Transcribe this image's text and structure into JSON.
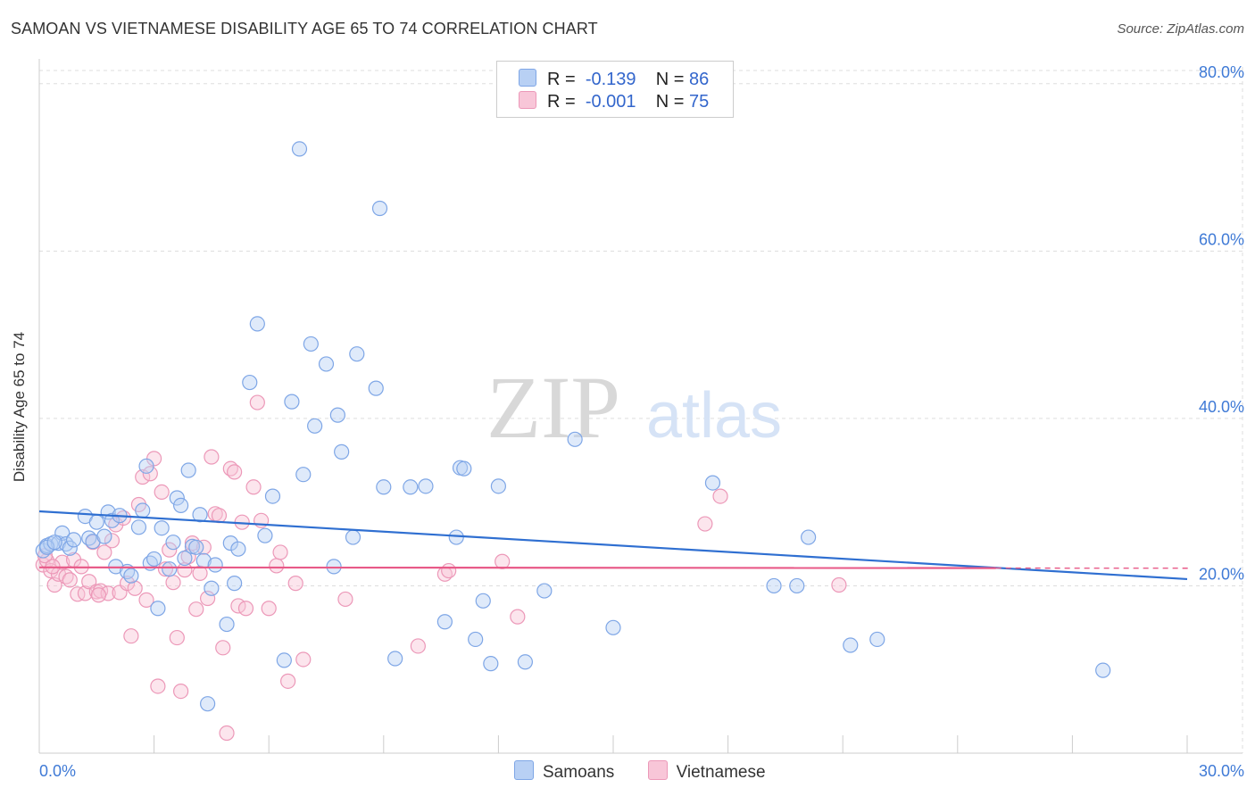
{
  "title": "SAMOAN VS VIETNAMESE DISABILITY AGE 65 TO 74 CORRELATION CHART",
  "source": "Source: ZipAtlas.com",
  "watermark": {
    "zip": "ZIP",
    "atlas": "atlas"
  },
  "legend": {
    "r_label": "R =",
    "n_label": "N =",
    "rows": [
      {
        "name": "Samoans",
        "r": "-0.139",
        "n": "86",
        "color": "#6b9be0"
      },
      {
        "name": "Vietnamese",
        "r": "-0.001",
        "n": "75",
        "color": "#ec8fb0"
      }
    ]
  },
  "colors": {
    "blue_fill": "#b8d0f4",
    "blue_stroke": "#7ea6e6",
    "blue_line": "#2f6fd1",
    "pink_fill": "#f8c6d8",
    "pink_stroke": "#ec98b8",
    "pink_line": "#e85a88",
    "axis_text": "#3f7ad6",
    "grid": "#dddddd"
  },
  "chart_data": {
    "type": "scatter",
    "title": "SAMOAN VS VIETNAMESE DISABILITY AGE 65 TO 74 CORRELATION CHART",
    "xlabel": "",
    "ylabel": "Disability Age 65 to 74",
    "xlim": [
      0,
      30
    ],
    "ylim": [
      0,
      82
    ],
    "x_tick_labels": [
      "0.0%",
      "30.0%"
    ],
    "y_ticks": [
      20,
      40,
      60,
      80
    ],
    "y_tick_labels": [
      "20.0%",
      "40.0%",
      "60.0%",
      "80.0%"
    ],
    "series": [
      {
        "name": "Samoans",
        "r": -0.139,
        "n": 86,
        "trend": {
          "x": [
            0,
            30
          ],
          "y": [
            28.9,
            20.8
          ]
        },
        "points": [
          [
            0.1,
            24.2
          ],
          [
            0.2,
            24.8
          ],
          [
            0.3,
            25.0
          ],
          [
            0.5,
            25.1
          ],
          [
            0.6,
            26.3
          ],
          [
            0.7,
            25.0
          ],
          [
            0.8,
            24.5
          ],
          [
            0.9,
            25.5
          ],
          [
            1.2,
            28.3
          ],
          [
            1.3,
            25.7
          ],
          [
            1.4,
            25.3
          ],
          [
            1.5,
            27.6
          ],
          [
            1.7,
            25.9
          ],
          [
            1.8,
            28.8
          ],
          [
            1.9,
            27.8
          ],
          [
            2.0,
            22.3
          ],
          [
            2.1,
            28.4
          ],
          [
            2.3,
            21.7
          ],
          [
            2.4,
            21.2
          ],
          [
            2.6,
            27.0
          ],
          [
            2.7,
            29.0
          ],
          [
            2.8,
            34.3
          ],
          [
            2.9,
            22.7
          ],
          [
            3.0,
            23.2
          ],
          [
            3.1,
            17.3
          ],
          [
            3.2,
            26.9
          ],
          [
            3.4,
            22.0
          ],
          [
            3.5,
            25.2
          ],
          [
            3.6,
            30.5
          ],
          [
            3.7,
            29.6
          ],
          [
            3.8,
            23.3
          ],
          [
            3.9,
            33.8
          ],
          [
            4.0,
            24.7
          ],
          [
            4.1,
            24.6
          ],
          [
            4.2,
            28.5
          ],
          [
            4.3,
            23.0
          ],
          [
            4.4,
            5.9
          ],
          [
            4.5,
            19.7
          ],
          [
            4.6,
            22.5
          ],
          [
            4.9,
            15.4
          ],
          [
            5.0,
            25.1
          ],
          [
            5.1,
            20.3
          ],
          [
            5.2,
            24.4
          ],
          [
            5.5,
            44.3
          ],
          [
            5.7,
            51.3
          ],
          [
            5.9,
            26.0
          ],
          [
            6.1,
            30.7
          ],
          [
            6.4,
            11.1
          ],
          [
            6.6,
            42.0
          ],
          [
            6.8,
            72.2
          ],
          [
            6.9,
            33.3
          ],
          [
            7.1,
            48.9
          ],
          [
            7.2,
            39.1
          ],
          [
            7.5,
            46.5
          ],
          [
            7.7,
            22.3
          ],
          [
            7.8,
            40.4
          ],
          [
            7.9,
            36.0
          ],
          [
            8.2,
            25.8
          ],
          [
            8.3,
            47.7
          ],
          [
            8.8,
            43.6
          ],
          [
            8.9,
            65.1
          ],
          [
            9.0,
            31.8
          ],
          [
            9.3,
            11.3
          ],
          [
            9.7,
            31.8
          ],
          [
            10.1,
            31.9
          ],
          [
            10.6,
            15.7
          ],
          [
            10.9,
            25.8
          ],
          [
            11.0,
            34.1
          ],
          [
            11.1,
            34.0
          ],
          [
            11.4,
            13.6
          ],
          [
            11.6,
            18.2
          ],
          [
            11.8,
            10.7
          ],
          [
            12.0,
            31.9
          ],
          [
            12.7,
            10.9
          ],
          [
            13.2,
            19.4
          ],
          [
            14.0,
            37.5
          ],
          [
            15.0,
            15.0
          ],
          [
            17.6,
            32.3
          ],
          [
            19.2,
            20.0
          ],
          [
            19.8,
            20.0
          ],
          [
            20.1,
            25.8
          ],
          [
            21.2,
            12.9
          ],
          [
            21.9,
            13.6
          ],
          [
            27.8,
            9.9
          ],
          [
            0.2,
            24.6
          ],
          [
            0.4,
            25.2
          ]
        ]
      },
      {
        "name": "Vietnamese",
        "r": -0.001,
        "n": 75,
        "trend": {
          "x": [
            0,
            30
          ],
          "y": [
            22.2,
            22.1
          ]
        },
        "points": [
          [
            0.1,
            22.5
          ],
          [
            0.2,
            23.0
          ],
          [
            0.3,
            21.8
          ],
          [
            0.4,
            20.1
          ],
          [
            0.5,
            21.4
          ],
          [
            0.6,
            22.8
          ],
          [
            0.7,
            21.1
          ],
          [
            0.8,
            20.7
          ],
          [
            0.9,
            23.1
          ],
          [
            1.0,
            19.0
          ],
          [
            1.1,
            22.3
          ],
          [
            1.2,
            19.1
          ],
          [
            1.3,
            20.5
          ],
          [
            1.4,
            25.2
          ],
          [
            1.5,
            19.3
          ],
          [
            1.6,
            19.4
          ],
          [
            1.7,
            24.0
          ],
          [
            1.8,
            19.1
          ],
          [
            1.9,
            25.4
          ],
          [
            2.0,
            27.3
          ],
          [
            2.1,
            19.2
          ],
          [
            2.2,
            28.1
          ],
          [
            2.3,
            20.3
          ],
          [
            2.4,
            14.0
          ],
          [
            2.5,
            19.7
          ],
          [
            2.6,
            29.7
          ],
          [
            2.7,
            33.0
          ],
          [
            2.8,
            18.3
          ],
          [
            2.9,
            33.4
          ],
          [
            3.0,
            35.2
          ],
          [
            3.1,
            8.0
          ],
          [
            3.2,
            31.2
          ],
          [
            3.3,
            22.0
          ],
          [
            3.4,
            24.3
          ],
          [
            3.5,
            20.4
          ],
          [
            3.6,
            13.8
          ],
          [
            3.7,
            7.4
          ],
          [
            3.8,
            21.9
          ],
          [
            3.9,
            23.5
          ],
          [
            4.0,
            25.1
          ],
          [
            4.1,
            17.2
          ],
          [
            4.2,
            21.5
          ],
          [
            4.3,
            24.6
          ],
          [
            4.4,
            18.5
          ],
          [
            4.5,
            35.4
          ],
          [
            4.6,
            28.6
          ],
          [
            4.7,
            28.4
          ],
          [
            4.8,
            12.6
          ],
          [
            4.9,
            2.4
          ],
          [
            5.0,
            34.0
          ],
          [
            5.1,
            33.6
          ],
          [
            5.2,
            17.6
          ],
          [
            5.3,
            27.6
          ],
          [
            5.4,
            17.3
          ],
          [
            5.6,
            31.8
          ],
          [
            5.7,
            41.9
          ],
          [
            5.8,
            27.8
          ],
          [
            6.0,
            17.3
          ],
          [
            6.2,
            22.4
          ],
          [
            6.3,
            24.0
          ],
          [
            6.5,
            8.6
          ],
          [
            6.7,
            20.3
          ],
          [
            6.9,
            11.2
          ],
          [
            8.0,
            18.4
          ],
          [
            9.9,
            12.8
          ],
          [
            10.6,
            21.4
          ],
          [
            10.7,
            21.8
          ],
          [
            12.1,
            22.9
          ],
          [
            12.5,
            16.3
          ],
          [
            17.4,
            27.4
          ],
          [
            17.8,
            30.7
          ],
          [
            20.9,
            20.1
          ],
          [
            0.15,
            23.6
          ],
          [
            0.35,
            22.3
          ],
          [
            1.55,
            18.9
          ]
        ]
      }
    ]
  },
  "x_axis": {
    "left_label": "0.0%",
    "right_label": "30.0%"
  }
}
